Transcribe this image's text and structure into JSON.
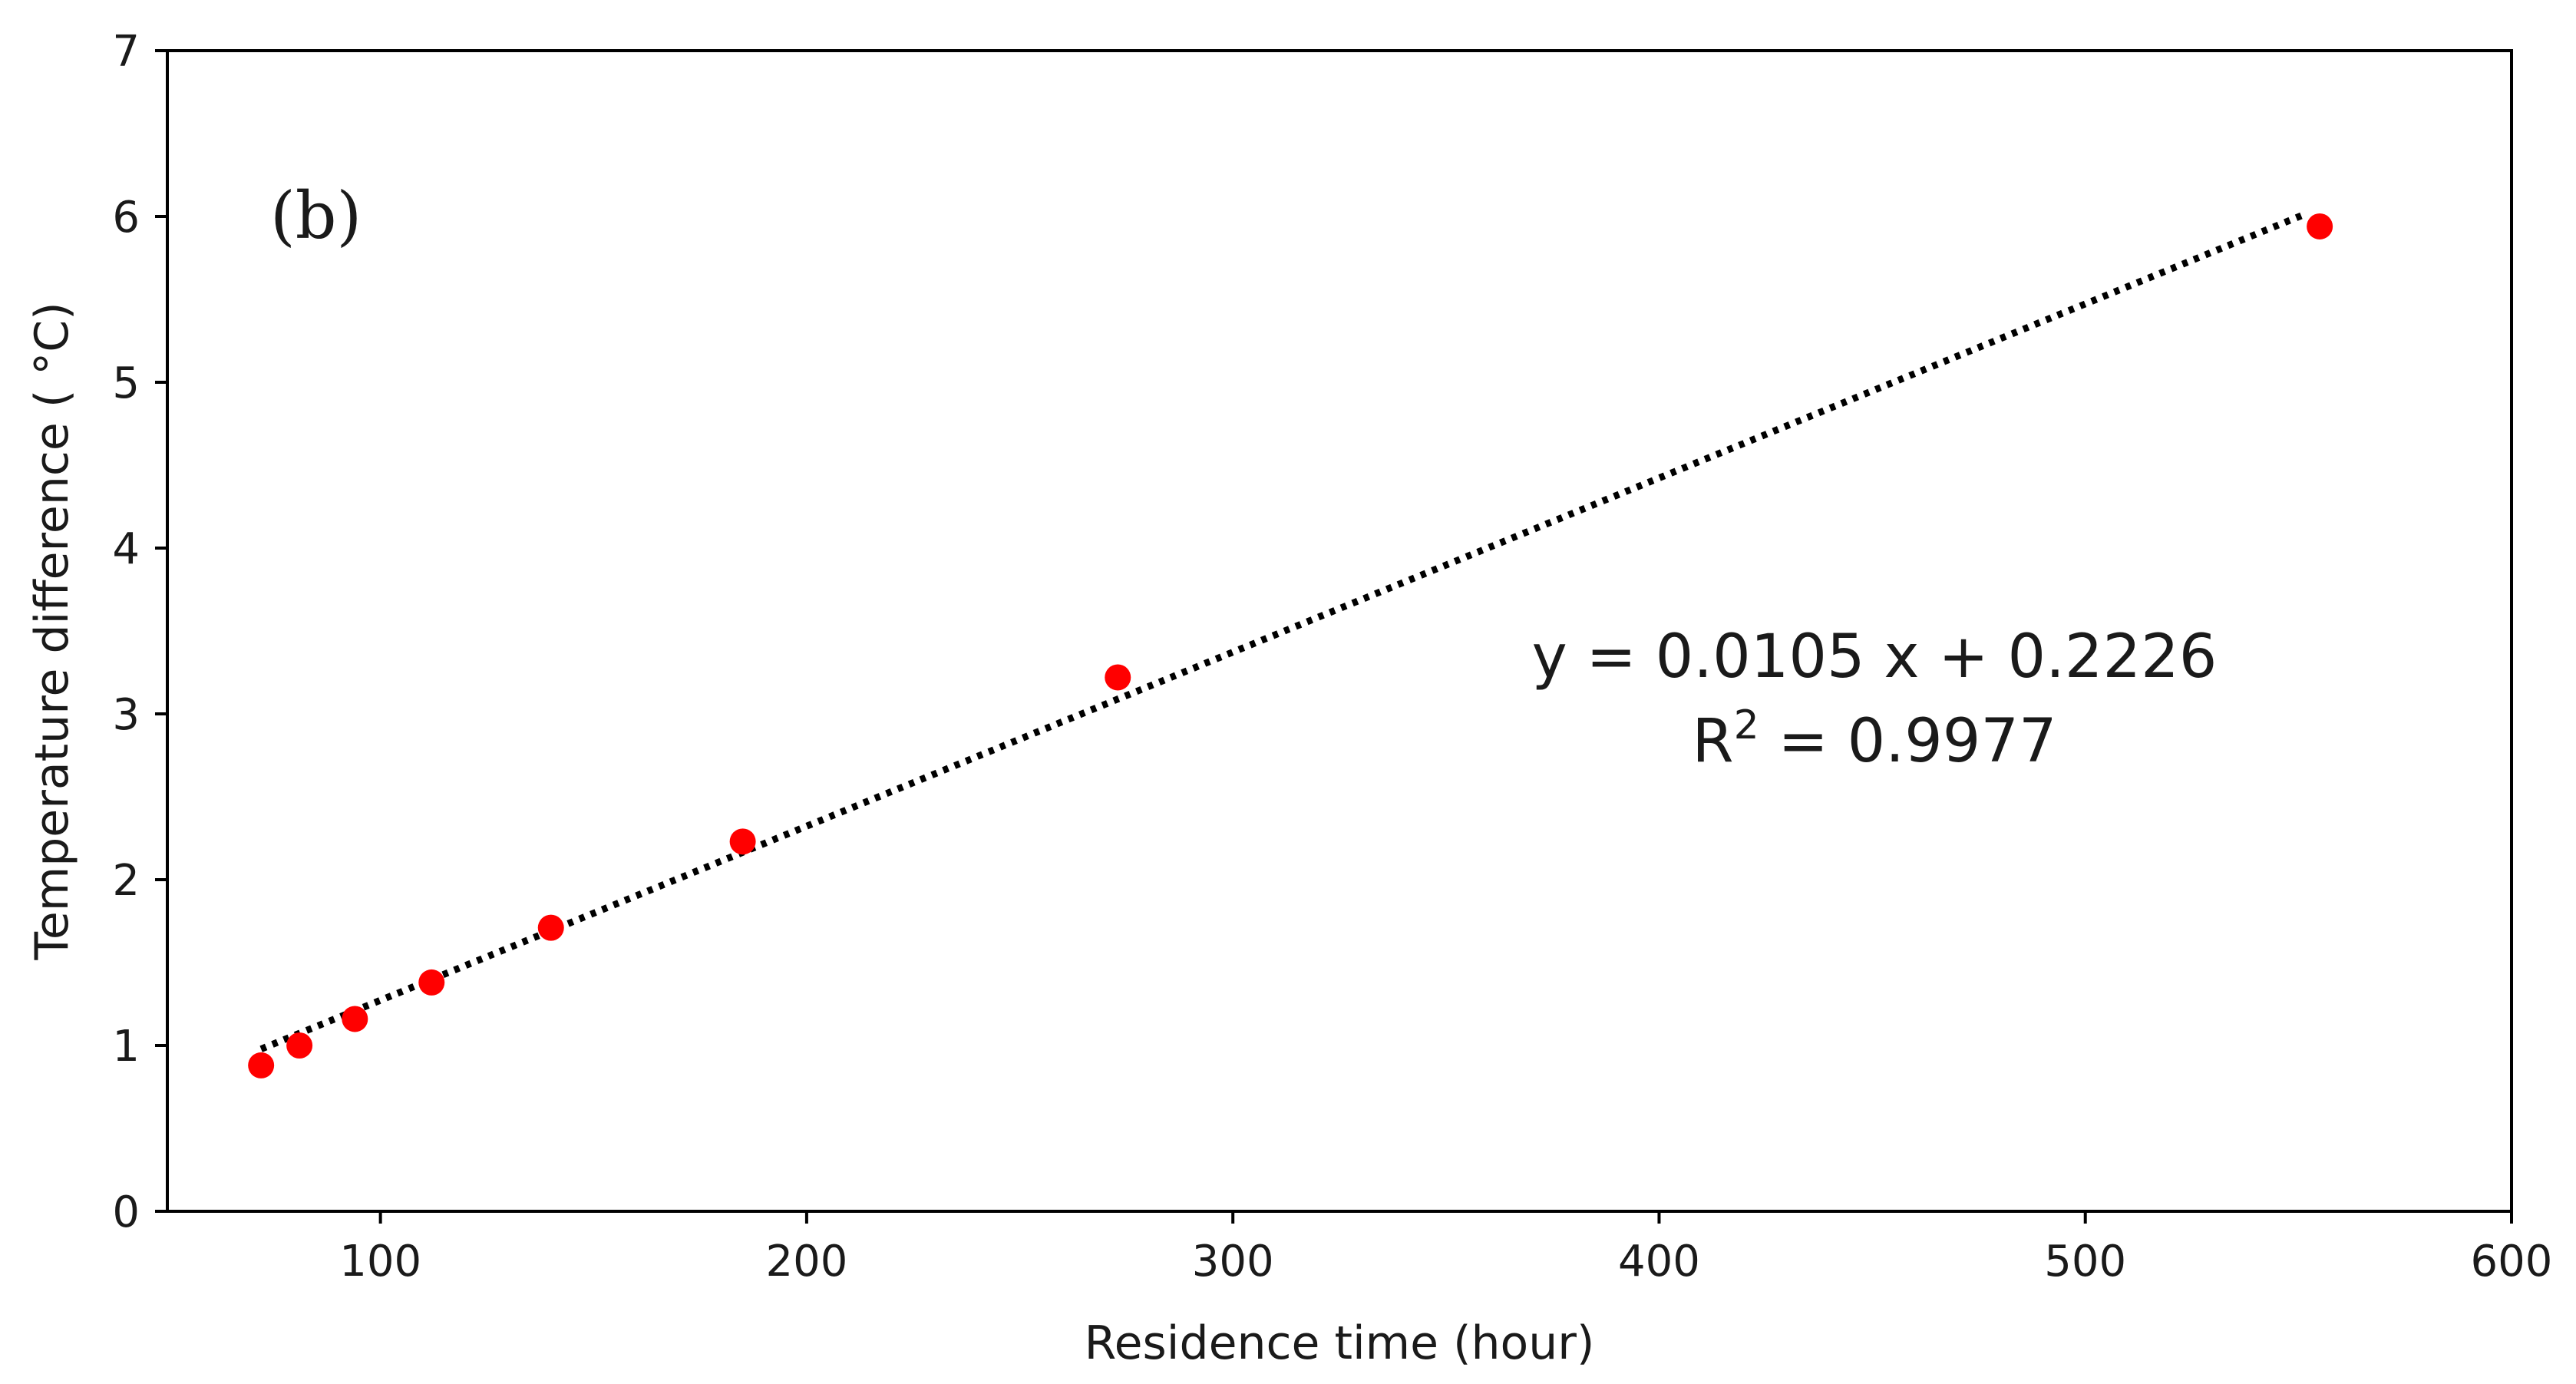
{
  "chart_data": {
    "type": "scatter",
    "panel_label": "(b)",
    "xlabel": "Residence time (hour)",
    "ylabel": "Temperature difference ( $^\\circ$C)",
    "ylabel_display": "Temperature difference ( °C)",
    "xlim": [
      50,
      600
    ],
    "ylim": [
      0,
      7
    ],
    "x_ticks": [
      100,
      200,
      300,
      400,
      500,
      600
    ],
    "y_ticks": [
      0,
      1,
      2,
      3,
      4,
      5,
      6,
      7
    ],
    "grid": false,
    "series": [
      {
        "marker_color": "#ff0000",
        "points": [
          {
            "x": 72,
            "y": 0.88
          },
          {
            "x": 81,
            "y": 1.0
          },
          {
            "x": 94,
            "y": 1.16
          },
          {
            "x": 112,
            "y": 1.38
          },
          {
            "x": 140,
            "y": 1.71
          },
          {
            "x": 185,
            "y": 2.23
          },
          {
            "x": 273,
            "y": 3.22
          },
          {
            "x": 555,
            "y": 5.94
          }
        ]
      }
    ],
    "trendline": {
      "style": "dotted",
      "color": "#000000",
      "slope": 0.0105,
      "intercept": 0.2226,
      "x_range": [
        72,
        552
      ]
    },
    "annotation": {
      "equation": "y = 0.0105 x + 0.2226",
      "r2_prefix": "R",
      "r2_exp": "2",
      "r2_suffix": " = 0.9977"
    }
  }
}
